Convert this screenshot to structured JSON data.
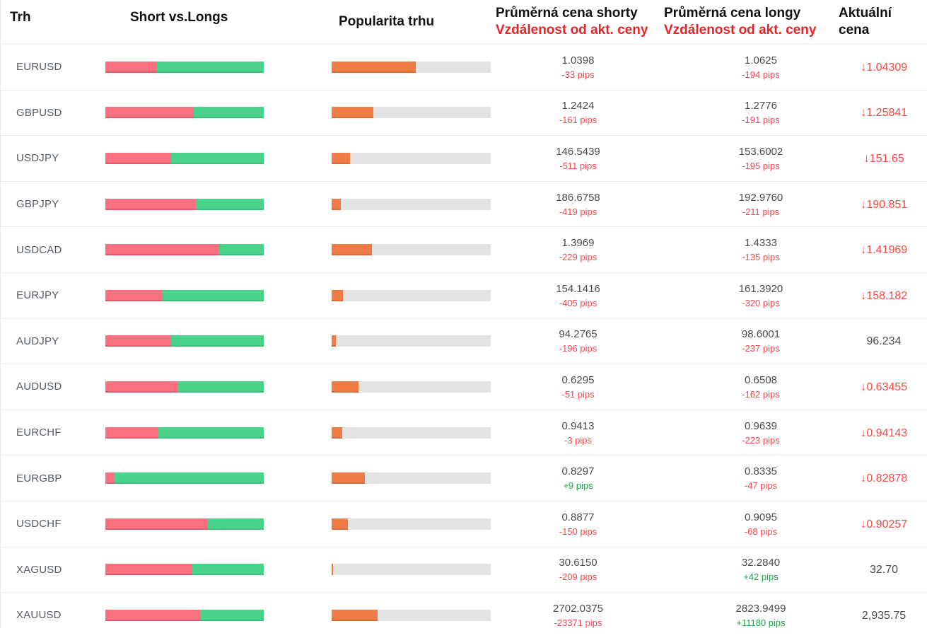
{
  "header": {
    "col_market": "Trh",
    "col_ratio": "Short vs.Longs",
    "col_popularity": "Popularita trhu",
    "col_short_line1": "Průměrná cena shorty",
    "col_short_line2": "Vzdálenost od akt. ceny",
    "col_long_line1": "Průměrná cena longy",
    "col_long_line2": "Vzdálenost od akt. ceny",
    "col_current_line1": "Aktuální",
    "col_current_line2": "cena"
  },
  "colors": {
    "short_bar": "#f9707f",
    "long_bar": "#49d38a",
    "popularity_bar": "#ef7b45",
    "popularity_track": "#e3e3e3",
    "negative_pips": "#f4484e",
    "positive_pips": "#17a74a",
    "current_price_down": "#fb4742",
    "header_accent_red": "#e8232a"
  },
  "rows": [
    {
      "pair": "EURUSD",
      "shorts_pct": 32.5,
      "popularity_pct": 52.9,
      "short_price": "1.0398",
      "short_dist": "-33 pips",
      "short_tone": "red",
      "long_price": "1.0625",
      "long_dist": "-194 pips",
      "long_tone": "red",
      "arrow": "↓",
      "current_price": "1.04309",
      "current_tone": "red"
    },
    {
      "pair": "GBPUSD",
      "shorts_pct": 56.0,
      "popularity_pct": 26.2,
      "short_price": "1.2424",
      "short_dist": "-161 pips",
      "short_tone": "red",
      "long_price": "1.2776",
      "long_dist": "-191 pips",
      "long_tone": "red",
      "arrow": "↓",
      "current_price": "1.25841",
      "current_tone": "red"
    },
    {
      "pair": "USDJPY",
      "shorts_pct": 41.5,
      "popularity_pct": 11.4,
      "short_price": "146.5439",
      "short_dist": "-511 pips",
      "short_tone": "red",
      "long_price": "153.6002",
      "long_dist": "-195 pips",
      "long_tone": "red",
      "arrow": "↓",
      "current_price": "151.65",
      "current_tone": "red"
    },
    {
      "pair": "GBPJPY",
      "shorts_pct": 57.0,
      "popularity_pct": 5.9,
      "short_price": "186.6758",
      "short_dist": "-419 pips",
      "short_tone": "red",
      "long_price": "192.9760",
      "long_dist": "-211 pips",
      "long_tone": "red",
      "arrow": "↓",
      "current_price": "190.851",
      "current_tone": "red"
    },
    {
      "pair": "USDCAD",
      "shorts_pct": 71.7,
      "popularity_pct": 25.2,
      "short_price": "1.3969",
      "short_dist": "-229 pips",
      "short_tone": "red",
      "long_price": "1.4333",
      "long_dist": "-135 pips",
      "long_tone": "red",
      "arrow": "↓",
      "current_price": "1.41969",
      "current_tone": "red"
    },
    {
      "pair": "EURJPY",
      "shorts_pct": 36.1,
      "popularity_pct": 6.9,
      "short_price": "154.1416",
      "short_dist": "-405 pips",
      "short_tone": "red",
      "long_price": "161.3920",
      "long_dist": "-320 pips",
      "long_tone": "red",
      "arrow": "↓",
      "current_price": "158.182",
      "current_tone": "red"
    },
    {
      "pair": "AUDJPY",
      "shorts_pct": 41.5,
      "popularity_pct": 2.8,
      "short_price": "94.2765",
      "short_dist": "-196 pips",
      "short_tone": "red",
      "long_price": "98.6001",
      "long_dist": "-237 pips",
      "long_tone": "red",
      "arrow": "",
      "current_price": "96.234",
      "current_tone": "gray"
    },
    {
      "pair": "AUDUSD",
      "shorts_pct": 45.5,
      "popularity_pct": 16.8,
      "short_price": "0.6295",
      "short_dist": "-51 pips",
      "short_tone": "red",
      "long_price": "0.6508",
      "long_dist": "-162 pips",
      "long_tone": "red",
      "arrow": "↓",
      "current_price": "0.63455",
      "current_tone": "red"
    },
    {
      "pair": "EURCHF",
      "shorts_pct": 33.6,
      "popularity_pct": 6.8,
      "short_price": "0.9413",
      "short_dist": "-3 pips",
      "short_tone": "red",
      "long_price": "0.9639",
      "long_dist": "-223 pips",
      "long_tone": "red",
      "arrow": "↓",
      "current_price": "0.94143",
      "current_tone": "red"
    },
    {
      "pair": "EURGBP",
      "shorts_pct": 5.6,
      "popularity_pct": 20.9,
      "short_price": "0.8297",
      "short_dist": "+9 pips",
      "short_tone": "green",
      "long_price": "0.8335",
      "long_dist": "-47 pips",
      "long_tone": "red",
      "arrow": "↓",
      "current_price": "0.82878",
      "current_tone": "red"
    },
    {
      "pair": "USDCHF",
      "shorts_pct": 64.7,
      "popularity_pct": 10.2,
      "short_price": "0.8877",
      "short_dist": "-150 pips",
      "short_tone": "red",
      "long_price": "0.9095",
      "long_dist": "-68 pips",
      "long_tone": "red",
      "arrow": "↓",
      "current_price": "0.90257",
      "current_tone": "red"
    },
    {
      "pair": "XAGUSD",
      "shorts_pct": 55.0,
      "popularity_pct": 1.0,
      "short_price": "30.6150",
      "short_dist": "-209 pips",
      "short_tone": "red",
      "long_price": "32.2840",
      "long_dist": "+42 pips",
      "long_tone": "green",
      "arrow": "",
      "current_price": "32.70",
      "current_tone": "gray"
    },
    {
      "pair": "XAUUSD",
      "shorts_pct": 59.8,
      "popularity_pct": 29.0,
      "short_price": "2702.0375",
      "short_dist": "-23371 pips",
      "short_tone": "red",
      "long_price": "2823.9499",
      "long_dist": "+11180 pips",
      "long_tone": "green",
      "arrow": "",
      "current_price": "2,935.75",
      "current_tone": "gray"
    }
  ],
  "chart_data": {
    "type": "table",
    "title": "Short vs. Longs market sentiment table",
    "columns": [
      "Trh",
      "Shorts %",
      "Popularita trhu %",
      "Průměrná cena shorty",
      "Vzdálenost od akt. ceny (short)",
      "Průměrná cena longy",
      "Vzdálenost od akt. ceny (long)",
      "Aktuální cena"
    ],
    "rows": [
      [
        "EURUSD",
        32.5,
        52.9,
        1.0398,
        "-33 pips",
        1.0625,
        "-194 pips",
        "↓1.04309"
      ],
      [
        "GBPUSD",
        56.0,
        26.2,
        1.2424,
        "-161 pips",
        1.2776,
        "-191 pips",
        "↓1.25841"
      ],
      [
        "USDJPY",
        41.5,
        11.4,
        146.5439,
        "-511 pips",
        153.6002,
        "-195 pips",
        "↓151.65"
      ],
      [
        "GBPJPY",
        57.0,
        5.9,
        186.6758,
        "-419 pips",
        192.976,
        "-211 pips",
        "↓190.851"
      ],
      [
        "USDCAD",
        71.7,
        25.2,
        1.3969,
        "-229 pips",
        1.4333,
        "-135 pips",
        "↓1.41969"
      ],
      [
        "EURJPY",
        36.1,
        6.9,
        154.1416,
        "-405 pips",
        161.392,
        "-320 pips",
        "↓158.182"
      ],
      [
        "AUDJPY",
        41.5,
        2.8,
        94.2765,
        "-196 pips",
        98.6001,
        "-237 pips",
        "96.234"
      ],
      [
        "AUDUSD",
        45.5,
        16.8,
        0.6295,
        "-51 pips",
        0.6508,
        "-162 pips",
        "↓0.63455"
      ],
      [
        "EURCHF",
        33.6,
        6.8,
        0.9413,
        "-3 pips",
        0.9639,
        "-223 pips",
        "↓0.94143"
      ],
      [
        "EURGBP",
        5.6,
        20.9,
        0.8297,
        "+9 pips",
        0.8335,
        "-47 pips",
        "↓0.82878"
      ],
      [
        "USDCHF",
        64.7,
        10.2,
        0.8877,
        "-150 pips",
        0.9095,
        "-68 pips",
        "↓0.90257"
      ],
      [
        "XAGUSD",
        55.0,
        1.0,
        30.615,
        "-209 pips",
        32.284,
        "+42 pips",
        "32.70"
      ],
      [
        "XAUUSD",
        59.8,
        29.0,
        2702.0375,
        "-23371 pips",
        2823.9499,
        "+11180 pips",
        "2,935.75"
      ]
    ]
  }
}
